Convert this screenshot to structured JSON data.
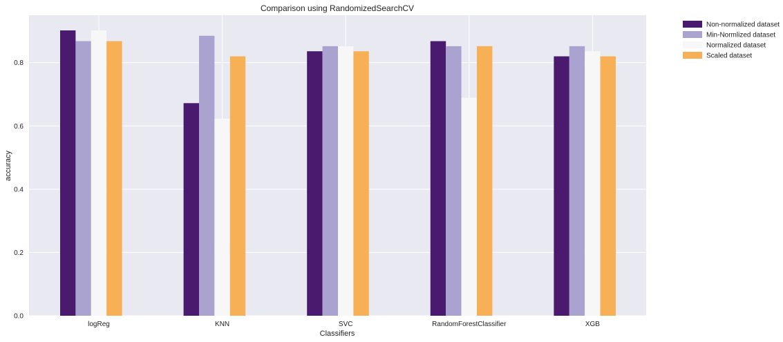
{
  "chart_data": {
    "type": "bar",
    "title": "Comparison using RandomizedSearchCV",
    "xlabel": "Classifiers",
    "ylabel": "accuracy",
    "categories": [
      "logReg",
      "KNN",
      "SVC",
      "RandomForestClassifier",
      "XGB"
    ],
    "series": [
      {
        "name": "Non-normalized dataset",
        "color": "#4a1a6e",
        "values": [
          0.902,
          0.672,
          0.836,
          0.868,
          0.82
        ]
      },
      {
        "name": "Min-Normlized dataset",
        "color": "#aba3cf",
        "values": [
          0.868,
          0.885,
          0.852,
          0.852,
          0.852
        ]
      },
      {
        "name": "Normalized dataset",
        "color": "#f7f7f7",
        "values": [
          0.902,
          0.623,
          0.852,
          0.689,
          0.836
        ]
      },
      {
        "name": "Scaled dataset",
        "color": "#f7b055",
        "values": [
          0.868,
          0.82,
          0.836,
          0.852,
          0.82
        ]
      }
    ],
    "yticks": [
      "0.0",
      "0.2",
      "0.4",
      "0.6",
      "0.8"
    ],
    "ylim": [
      0,
      0.95
    ],
    "grid": true,
    "legend_position": "outside-top-right",
    "plot_background": "#e9e9f2"
  }
}
